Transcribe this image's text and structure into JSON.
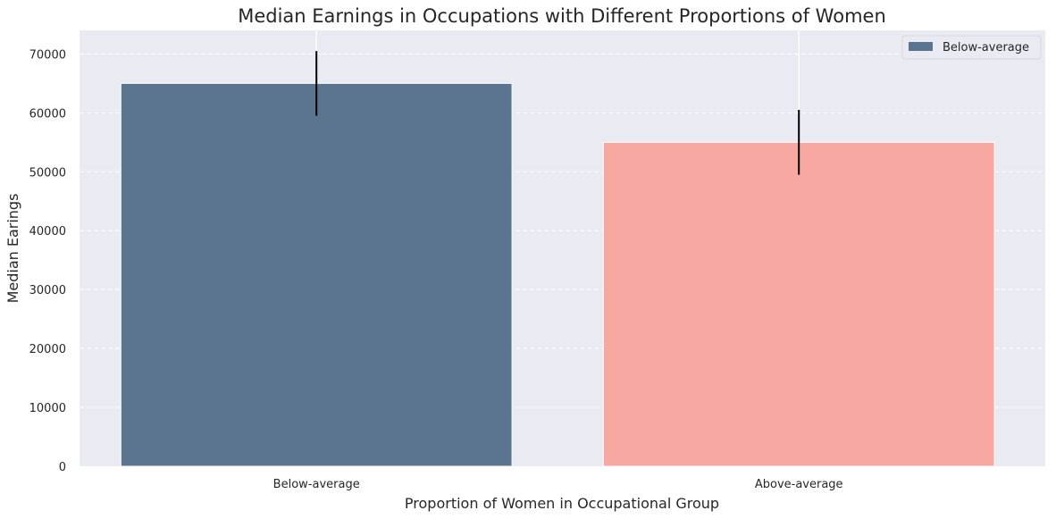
{
  "chart_data": {
    "type": "bar",
    "title": "Median Earnings in Occupations with Different Proportions of Women",
    "xlabel": "Proportion of Women in Occupational Group",
    "ylabel": "Median Earings",
    "categories": [
      "Below-average",
      "Above-average"
    ],
    "values": [
      65000,
      55000
    ],
    "error": [
      5500,
      5500
    ],
    "bar_colors": [
      "#5b7590",
      "#f7a8a0"
    ],
    "ylim": [
      0,
      74000
    ],
    "yticks": [
      0,
      10000,
      20000,
      30000,
      40000,
      50000,
      60000,
      70000
    ],
    "ytick_labels": [
      "0",
      "10000",
      "20000",
      "30000",
      "40000",
      "50000",
      "60000",
      "70000"
    ],
    "grid": true,
    "legend": {
      "position": "top-right",
      "entries": [
        {
          "label": "Below-average",
          "color": "#5b7590"
        }
      ]
    },
    "colors": {
      "plot_background": "#eaeaf2",
      "grid": "#ffffff",
      "error_bar": "#000000"
    }
  }
}
